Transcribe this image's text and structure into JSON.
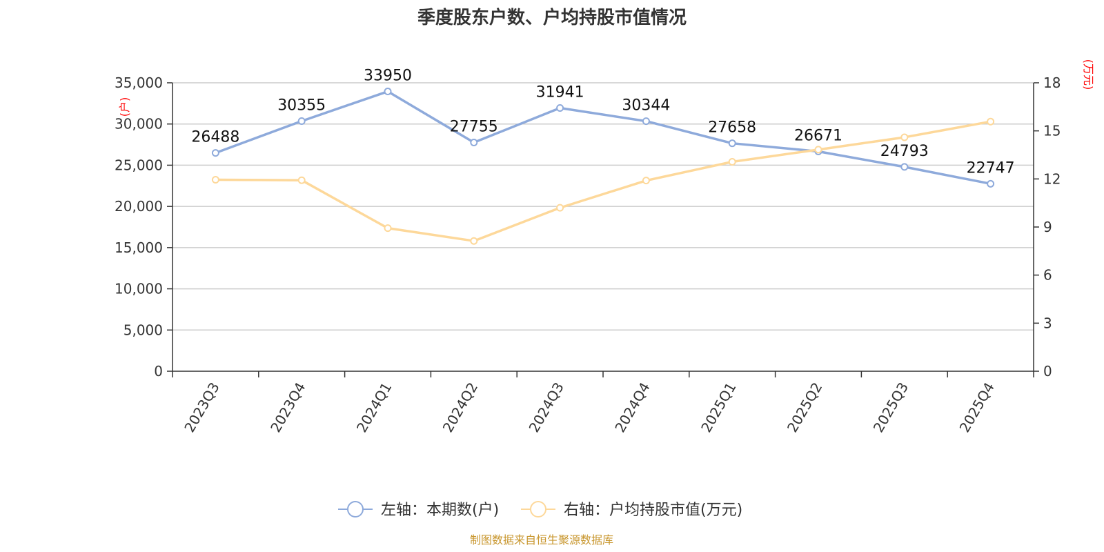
{
  "chart_data": {
    "type": "line",
    "title": "季度股东户数、户均持股市值情况",
    "categories": [
      "2023Q3",
      "2023Q4",
      "2024Q1",
      "2024Q2",
      "2024Q3",
      "2024Q4",
      "2025Q1",
      "2025Q2",
      "2025Q3",
      "2025Q4"
    ],
    "y_left": {
      "unit": "(户)",
      "min": 0,
      "max": 35000,
      "ticks": [
        "0",
        "5,000",
        "10,000",
        "15,000",
        "20,000",
        "25,000",
        "30,000",
        "35,000"
      ]
    },
    "y_right": {
      "unit": "(万元)",
      "min": 0,
      "max": 18,
      "ticks": [
        "0",
        "3",
        "6",
        "9",
        "12",
        "15",
        "18"
      ]
    },
    "series": [
      {
        "name": "左轴：本期数(户)",
        "axis": "left",
        "color": "#8eaadb",
        "values": [
          26488,
          30355,
          33950,
          27755,
          31941,
          30344,
          27658,
          26671,
          24793,
          22747
        ],
        "labels": [
          "26488",
          "30355",
          "33950",
          "27755",
          "31941",
          "30344",
          "27658",
          "26671",
          "24793",
          "22747"
        ]
      },
      {
        "name": "右轴：户均持股市值(万元)",
        "axis": "right",
        "color": "#fdd89a",
        "values": [
          11.95,
          11.92,
          8.93,
          8.13,
          10.2,
          11.9,
          13.07,
          13.83,
          14.6,
          15.58
        ]
      }
    ],
    "grid": true,
    "legend_position": "bottom-center",
    "unit_color": "#ff0000",
    "source_color": "#c8962d",
    "source": "制图数据来自恒生聚源数据库"
  }
}
